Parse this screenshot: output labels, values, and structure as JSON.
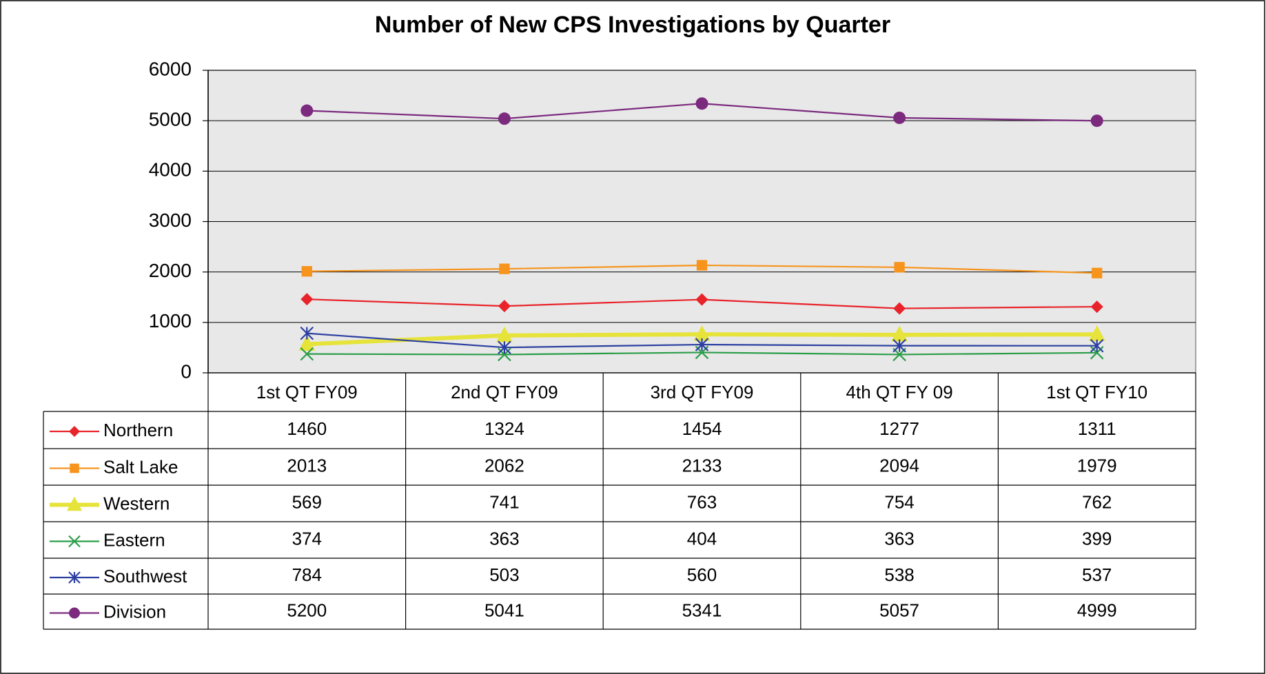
{
  "chart_data": {
    "type": "line",
    "title": "Number of New CPS Investigations by Quarter",
    "categories": [
      "1st QT FY09",
      "2nd QT FY09",
      "3rd QT FY09",
      "4th QT FY 09",
      "1st QT FY10"
    ],
    "series": [
      {
        "name": "Northern",
        "color": "#e8232a",
        "marker": "diamond",
        "values": [
          1460,
          1324,
          1454,
          1277,
          1311
        ]
      },
      {
        "name": "Salt Lake",
        "color": "#f7941d",
        "marker": "square",
        "values": [
          2013,
          2062,
          2133,
          2094,
          1979
        ]
      },
      {
        "name": "Western",
        "color": "#e6e33b",
        "marker": "triangle",
        "values": [
          569,
          741,
          763,
          754,
          762
        ]
      },
      {
        "name": "Eastern",
        "color": "#2a9d48",
        "marker": "x",
        "values": [
          374,
          363,
          404,
          363,
          399
        ]
      },
      {
        "name": "Southwest",
        "color": "#2b3fa0",
        "marker": "asterisk",
        "values": [
          784,
          503,
          560,
          538,
          537
        ]
      },
      {
        "name": "Division",
        "color": "#7b2a7e",
        "marker": "circle",
        "values": [
          5200,
          5041,
          5341,
          5057,
          4999
        ]
      }
    ],
    "ylim": [
      0,
      6000
    ],
    "yticks": [
      0,
      1000,
      2000,
      3000,
      4000,
      5000,
      6000
    ],
    "grid": true
  }
}
